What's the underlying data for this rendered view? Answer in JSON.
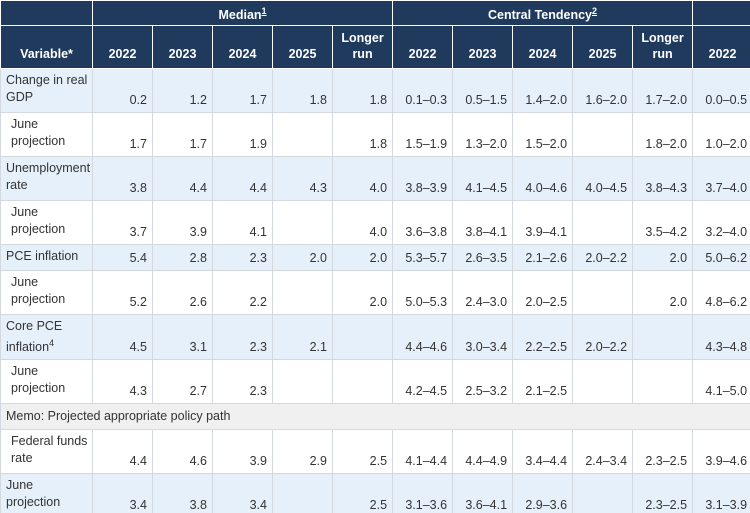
{
  "header": {
    "groups": [
      {
        "label": "Median",
        "note": "1"
      },
      {
        "label": "Central Tendency",
        "note": "2"
      }
    ],
    "variable": "Variable*",
    "columns": [
      "2022",
      "2023",
      "2024",
      "2025",
      "Longer run",
      "2022",
      "2023",
      "2024",
      "2025",
      "Longer run",
      "2022"
    ]
  },
  "rows": [
    {
      "label": "Change in real GDP",
      "cells": [
        "0.2",
        "1.2",
        "1.7",
        "1.8",
        "1.8",
        "0.1–0.3",
        "0.5–1.5",
        "1.4–2.0",
        "1.6–2.0",
        "1.7–2.0",
        "0.0–0.5"
      ]
    },
    {
      "label": "June projection",
      "cells": [
        "1.7",
        "1.7",
        "1.9",
        null,
        "1.8",
        "1.5–1.9",
        "1.3–2.0",
        "1.5–2.0",
        null,
        "1.8–2.0",
        "1.0–2.0"
      ]
    },
    {
      "label": "Unemployment rate",
      "cells": [
        "3.8",
        "4.4",
        "4.4",
        "4.3",
        "4.0",
        "3.8–3.9",
        "4.1–4.5",
        "4.0–4.6",
        "4.0–4.5",
        "3.8–4.3",
        "3.7–4.0"
      ]
    },
    {
      "label": "June projection",
      "cells": [
        "3.7",
        "3.9",
        "4.1",
        null,
        "4.0",
        "3.6–3.8",
        "3.8–4.1",
        "3.9–4.1",
        null,
        "3.5–4.2",
        "3.2–4.0"
      ]
    },
    {
      "label": "PCE inflation",
      "cells": [
        "5.4",
        "2.8",
        "2.3",
        "2.0",
        "2.0",
        "5.3–5.7",
        "2.6–3.5",
        "2.1–2.6",
        "2.0–2.2",
        "2.0",
        "5.0–6.2"
      ]
    },
    {
      "label": "June projection",
      "cells": [
        "5.2",
        "2.6",
        "2.2",
        null,
        "2.0",
        "5.0–5.3",
        "2.4–3.0",
        "2.0–2.5",
        null,
        "2.0",
        "4.8–6.2"
      ]
    },
    {
      "label": "Core PCE inflation",
      "note": "4",
      "cells": [
        "4.5",
        "3.1",
        "2.3",
        "2.1",
        null,
        "4.4–4.6",
        "3.0–3.4",
        "2.2–2.5",
        "2.0–2.2",
        null,
        "4.3–4.8"
      ]
    },
    {
      "label": "June projection",
      "cells": [
        "4.3",
        "2.7",
        "2.3",
        null,
        null,
        "4.2–4.5",
        "2.5–3.2",
        "2.1–2.5",
        null,
        null,
        "4.1–5.0"
      ]
    },
    {
      "memo": "Memo: Projected appropriate policy path"
    },
    {
      "label": "Federal funds rate",
      "cells": [
        "4.4",
        "4.6",
        "3.9",
        "2.9",
        "2.5",
        "4.1–4.4",
        "4.4–4.9",
        "3.4–4.4",
        "2.4–3.4",
        "2.3–2.5",
        "3.9–4.6"
      ]
    },
    {
      "label": "June projection",
      "cells": [
        "3.4",
        "3.8",
        "3.4",
        null,
        "2.5",
        "3.1–3.6",
        "3.6–4.1",
        "2.9–3.6",
        null,
        "2.3–2.5",
        "3.1–3.9"
      ]
    }
  ]
}
